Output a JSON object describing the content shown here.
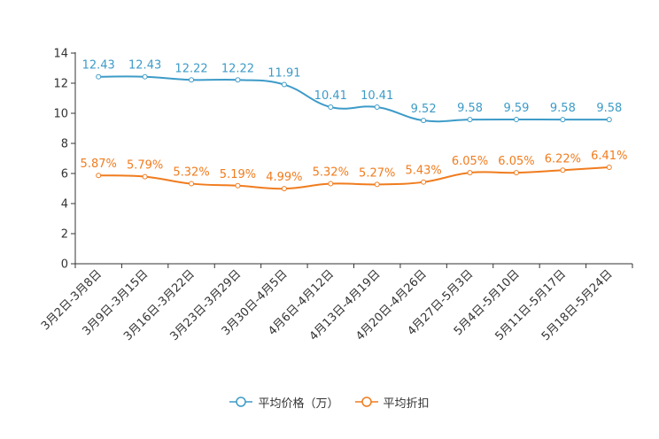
{
  "chart_data": {
    "type": "line",
    "categories": [
      "3月2日-3月8日",
      "3月9日-3月15日",
      "3月16日-3月22日",
      "3月23日-3月29日",
      "3月30日-4月5日",
      "4月6日-4月12日",
      "4月13日-4月19日",
      "4月20日-4月26日",
      "4月27日-5月3日",
      "5月4日-5月10日",
      "5月11日-5月17日",
      "5月18日-5月24日"
    ],
    "series": [
      {
        "name": "平均价格（万）",
        "color": "#3d9bc8",
        "values": [
          12.43,
          12.43,
          12.22,
          12.22,
          11.91,
          10.41,
          10.41,
          9.52,
          9.58,
          9.59,
          9.58,
          9.58
        ],
        "labels": [
          "12.43",
          "12.43",
          "12.22",
          "12.22",
          "11.91",
          "10.41",
          "10.41",
          "9.52",
          "9.58",
          "9.59",
          "9.58",
          "9.58"
        ]
      },
      {
        "name": "平均折扣",
        "color": "#f07c1e",
        "values": [
          5.87,
          5.79,
          5.32,
          5.19,
          4.99,
          5.32,
          5.27,
          5.43,
          6.05,
          6.05,
          6.22,
          6.41
        ],
        "labels": [
          "5.87%",
          "5.79%",
          "5.32%",
          "5.19%",
          "4.99%",
          "5.32%",
          "5.27%",
          "5.43%",
          "6.05%",
          "6.05%",
          "6.22%",
          "6.41%"
        ]
      }
    ],
    "ylim": [
      0,
      14
    ],
    "yticks": [
      0,
      2,
      4,
      6,
      8,
      10,
      12,
      14
    ],
    "title": "",
    "xlabel": "",
    "ylabel": "",
    "legend_position": "bottom-center"
  }
}
